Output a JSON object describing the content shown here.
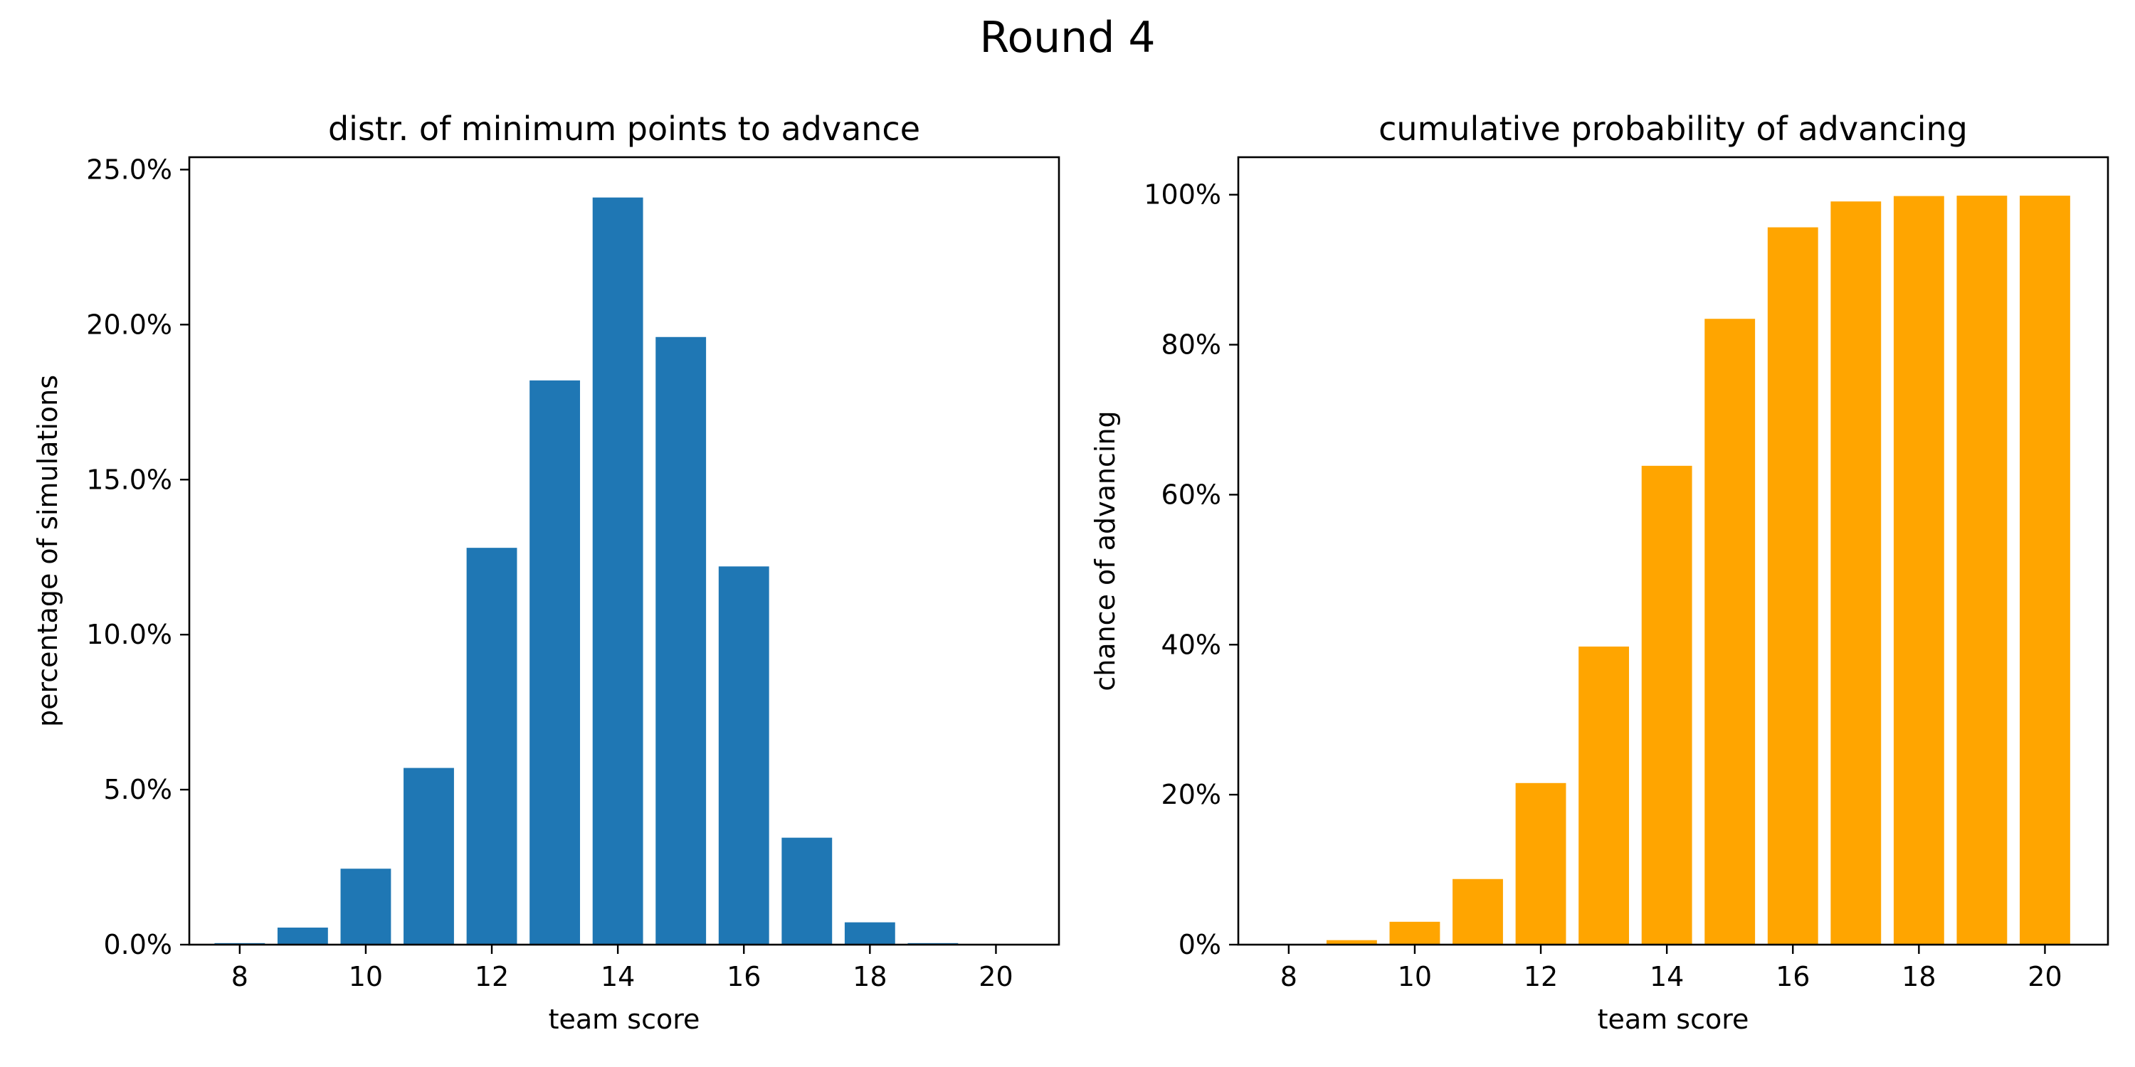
{
  "figure": {
    "title": "Round 4"
  },
  "chart_data": [
    {
      "type": "bar",
      "title": "distr. of minimum points to advance",
      "xlabel": "team score",
      "ylabel": "percentage of simulations",
      "x": [
        8,
        9,
        10,
        11,
        12,
        13,
        14,
        15,
        16,
        17,
        18,
        19,
        20
      ],
      "values": [
        0.05,
        0.55,
        2.45,
        5.7,
        12.8,
        18.2,
        24.1,
        19.6,
        12.2,
        3.45,
        0.72,
        0.05,
        0.0
      ],
      "unit": "%",
      "xlim": [
        7.2,
        21.0
      ],
      "ylim": [
        0,
        25.4
      ],
      "xticks": [
        8,
        10,
        12,
        14,
        16,
        18,
        20
      ],
      "yticks": [
        0,
        5,
        10,
        15,
        20,
        25
      ],
      "ytick_labels": [
        "0.0%",
        "5.0%",
        "10.0%",
        "15.0%",
        "20.0%",
        "25.0%"
      ],
      "color": "#1f77b4",
      "grid": false
    },
    {
      "type": "bar",
      "title": "cumulative probability of advancing",
      "xlabel": "team score",
      "ylabel": "chance of advancing",
      "x": [
        8,
        9,
        10,
        11,
        12,
        13,
        14,
        15,
        16,
        17,
        18,
        19,
        20
      ],
      "values": [
        0.05,
        0.6,
        3.05,
        8.75,
        21.55,
        39.75,
        63.85,
        83.45,
        95.65,
        99.1,
        99.82,
        99.87,
        99.87
      ],
      "unit": "%",
      "xlim": [
        7.2,
        21.0
      ],
      "ylim": [
        0,
        105
      ],
      "xticks": [
        8,
        10,
        12,
        14,
        16,
        18,
        20
      ],
      "yticks": [
        0,
        20,
        40,
        60,
        80,
        100
      ],
      "ytick_labels": [
        "0%",
        "20%",
        "40%",
        "60%",
        "80%",
        "100%"
      ],
      "color": "#ffa500",
      "grid": false
    }
  ]
}
